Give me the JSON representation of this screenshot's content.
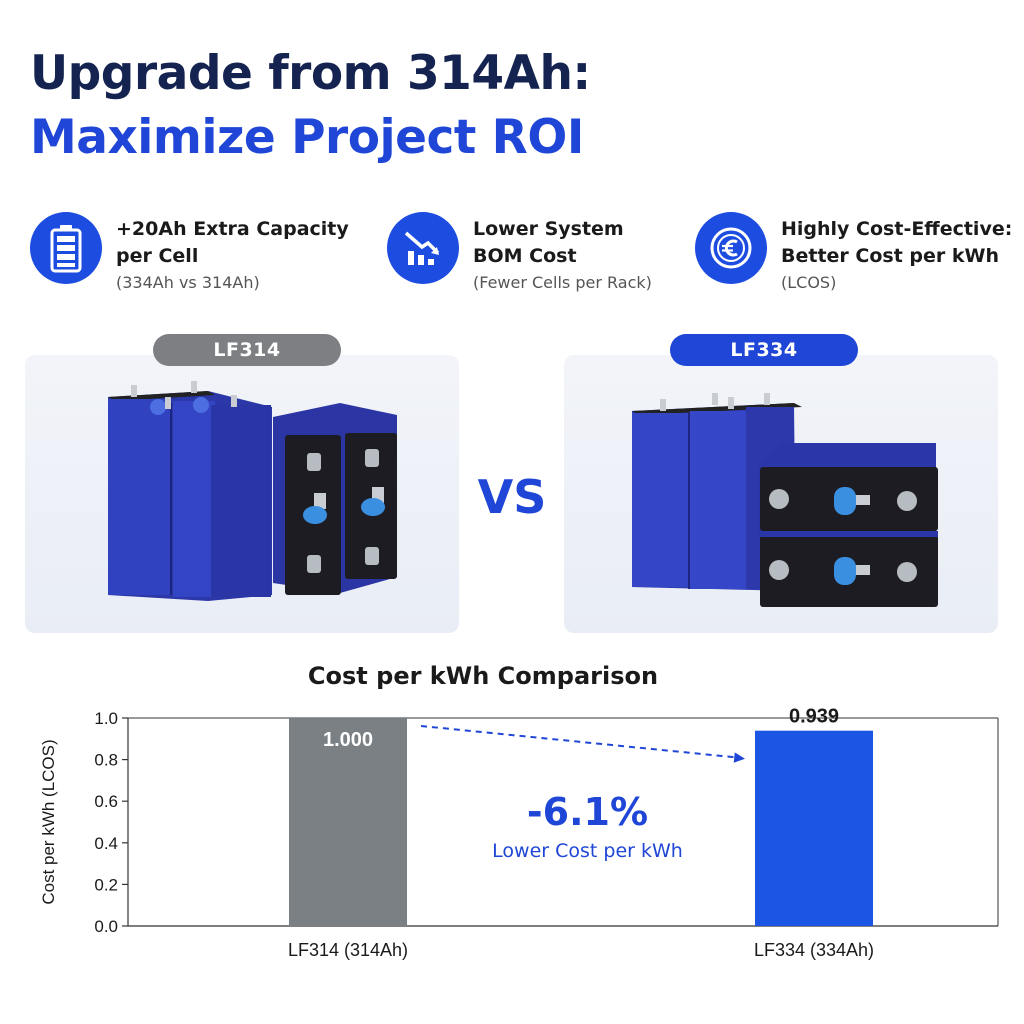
{
  "headline": {
    "line1": "Upgrade from 314Ah:",
    "line2": "Maximize Project ROI"
  },
  "features": [
    {
      "icon": "battery-icon",
      "title_line1": "+20Ah Extra Capacity",
      "title_line2": "per Cell",
      "subtitle": "(334Ah vs 314Ah)"
    },
    {
      "icon": "cost-down-chart-icon",
      "title_line1": "Lower System",
      "title_line2": "BOM Cost",
      "subtitle": "(Fewer Cells per Rack)"
    },
    {
      "icon": "euro-coin-icon",
      "title_line1": "Highly Cost-Effective:",
      "title_line2": "Better Cost per kWh",
      "subtitle": "(LCOS)"
    }
  ],
  "products": {
    "left_label": "LF314",
    "right_label": "LF334",
    "vs_label": "VS"
  },
  "colors": {
    "accent": "#1f46d6",
    "navy": "#14234f",
    "gray_bar": "#7b8085",
    "pill_gray": "#7d7f83",
    "blue_bar": "#1a55e3"
  },
  "chart_data": {
    "type": "bar",
    "title": "Cost per kWh Comparison",
    "ylabel": "Cost per kWh (LCOS)",
    "xlabel": "",
    "categories": [
      "LF314 (314Ah)",
      "LF334 (334Ah)"
    ],
    "values": [
      1.0,
      0.939
    ],
    "value_labels": [
      "1.000",
      "0.939"
    ],
    "ylim": [
      0,
      1.0
    ],
    "yticks": [
      "0.0",
      "0.2",
      "0.4",
      "0.6",
      "0.8",
      "1.0"
    ],
    "grid": false,
    "annotation": {
      "percent": "-6.1%",
      "text": "Lower Cost per kWh"
    }
  }
}
